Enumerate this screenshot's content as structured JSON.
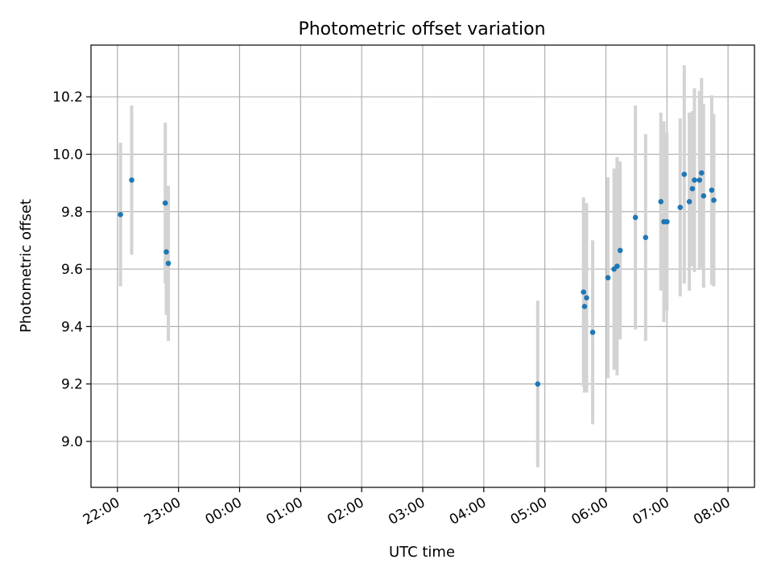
{
  "chart_data": {
    "type": "scatter",
    "title": "Photometric offset variation",
    "xlabel": "UTC time",
    "ylabel": "Photometric offset",
    "x_unit": "UTC time (HH:MM); points cross midnight into the next day",
    "xlim": [
      "21:34",
      "08:26"
    ],
    "ylim": [
      8.84,
      10.38
    ],
    "grid": true,
    "x_ticks": [
      "22:00",
      "23:00",
      "00:00",
      "01:00",
      "02:00",
      "03:00",
      "04:00",
      "05:00",
      "06:00",
      "07:00",
      "08:00"
    ],
    "y_ticks": [
      "9.0",
      "9.2",
      "9.4",
      "9.6",
      "9.8",
      "10.0",
      "10.2"
    ],
    "series": [
      {
        "marker_color": "#1f77b4",
        "errorbar_color": "#d3d3d3",
        "points": [
          {
            "x": "22:03",
            "y": 9.79,
            "err": 0.25
          },
          {
            "x": "22:14",
            "y": 9.91,
            "err": 0.26
          },
          {
            "x": "22:47",
            "y": 9.83,
            "err": 0.28
          },
          {
            "x": "22:48",
            "y": 9.66,
            "err": 0.22
          },
          {
            "x": "22:50",
            "y": 9.62,
            "err": 0.27
          },
          {
            "x": "04:53",
            "y": 9.2,
            "err": 0.29
          },
          {
            "x": "05:38",
            "y": 9.52,
            "err": 0.33
          },
          {
            "x": "05:39",
            "y": 9.47,
            "err": 0.3
          },
          {
            "x": "05:41",
            "y": 9.5,
            "err": 0.33
          },
          {
            "x": "05:47",
            "y": 9.38,
            "err": 0.32
          },
          {
            "x": "06:02",
            "y": 9.57,
            "err": 0.35
          },
          {
            "x": "06:08",
            "y": 9.6,
            "err": 0.35
          },
          {
            "x": "06:11",
            "y": 9.61,
            "err": 0.38
          },
          {
            "x": "06:14",
            "y": 9.665,
            "err": 0.31
          },
          {
            "x": "06:29",
            "y": 9.78,
            "err": 0.39
          },
          {
            "x": "06:39",
            "y": 9.71,
            "err": 0.36
          },
          {
            "x": "06:54",
            "y": 9.835,
            "err": 0.31
          },
          {
            "x": "06:57",
            "y": 9.765,
            "err": 0.35
          },
          {
            "x": "07:00",
            "y": 9.765,
            "err": 0.31
          },
          {
            "x": "07:13",
            "y": 9.815,
            "err": 0.31
          },
          {
            "x": "07:17",
            "y": 9.93,
            "err": 0.38
          },
          {
            "x": "07:22",
            "y": 9.835,
            "err": 0.31
          },
          {
            "x": "07:25",
            "y": 9.88,
            "err": 0.27
          },
          {
            "x": "07:27",
            "y": 9.91,
            "err": 0.32
          },
          {
            "x": "07:32",
            "y": 9.91,
            "err": 0.31
          },
          {
            "x": "07:34",
            "y": 9.935,
            "err": 0.33
          },
          {
            "x": "07:36",
            "y": 9.855,
            "err": 0.32
          },
          {
            "x": "07:44",
            "y": 9.875,
            "err": 0.33
          },
          {
            "x": "07:46",
            "y": 9.84,
            "err": 0.3
          }
        ]
      }
    ]
  }
}
